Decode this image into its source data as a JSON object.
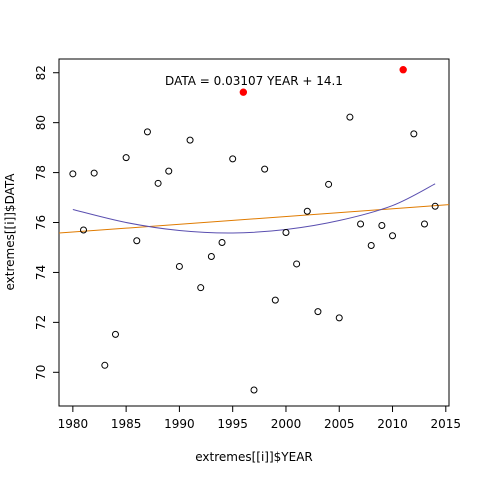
{
  "chart_data": {
    "type": "scatter",
    "xlabel": "extremes[[i]]$YEAR",
    "ylabel": "extremes[[i]]$DATA",
    "xlim": [
      1978.7,
      2015.3
    ],
    "ylim": [
      68.65,
      82.55
    ],
    "xticks": [
      1980,
      1985,
      1990,
      1995,
      2000,
      2005,
      2010,
      2015
    ],
    "yticks": [
      70,
      72,
      74,
      76,
      78,
      80,
      82
    ],
    "annotation": "DATA = 0.03107 YEAR + 14.1",
    "points": [
      {
        "x": 1980,
        "y": 77.95
      },
      {
        "x": 1981,
        "y": 75.7
      },
      {
        "x": 1982,
        "y": 77.98
      },
      {
        "x": 1983,
        "y": 70.28
      },
      {
        "x": 1984,
        "y": 71.52
      },
      {
        "x": 1985,
        "y": 78.6
      },
      {
        "x": 1986,
        "y": 75.27
      },
      {
        "x": 1987,
        "y": 79.63
      },
      {
        "x": 1988,
        "y": 77.57
      },
      {
        "x": 1989,
        "y": 78.06
      },
      {
        "x": 1990,
        "y": 74.24
      },
      {
        "x": 1991,
        "y": 79.3
      },
      {
        "x": 1992,
        "y": 73.39
      },
      {
        "x": 1993,
        "y": 74.64
      },
      {
        "x": 1994,
        "y": 75.2
      },
      {
        "x": 1995,
        "y": 78.55
      },
      {
        "x": 1997,
        "y": 69.29
      },
      {
        "x": 1998,
        "y": 78.14
      },
      {
        "x": 1999,
        "y": 72.89
      },
      {
        "x": 2000,
        "y": 75.6
      },
      {
        "x": 2001,
        "y": 74.34
      },
      {
        "x": 2002,
        "y": 76.45
      },
      {
        "x": 2003,
        "y": 72.43
      },
      {
        "x": 2004,
        "y": 77.53
      },
      {
        "x": 2005,
        "y": 72.18
      },
      {
        "x": 2006,
        "y": 80.22
      },
      {
        "x": 2007,
        "y": 75.94
      },
      {
        "x": 2008,
        "y": 75.08
      },
      {
        "x": 2009,
        "y": 75.88
      },
      {
        "x": 2010,
        "y": 75.47
      },
      {
        "x": 2012,
        "y": 79.55
      },
      {
        "x": 2013,
        "y": 75.94
      },
      {
        "x": 2014,
        "y": 76.65
      }
    ],
    "highlight_points": [
      {
        "x": 1996,
        "y": 81.22
      },
      {
        "x": 2011,
        "y": 82.12
      }
    ],
    "linear_fit": {
      "slope": 0.03107,
      "intercept": 14.1
    },
    "quadratic_fit": [
      {
        "x": 1980,
        "y": 76.52
      },
      {
        "x": 1985,
        "y": 76.0
      },
      {
        "x": 1990,
        "y": 75.68
      },
      {
        "x": 1995,
        "y": 75.58
      },
      {
        "x": 2000,
        "y": 75.72
      },
      {
        "x": 2005,
        "y": 76.08
      },
      {
        "x": 2010,
        "y": 76.68
      },
      {
        "x": 2014,
        "y": 77.55
      }
    ],
    "colors": {
      "points": "#000000",
      "highlight": "#ff0000",
      "linear_fit": "#e07b00",
      "quadratic_fit": "#5a4fb0"
    }
  }
}
